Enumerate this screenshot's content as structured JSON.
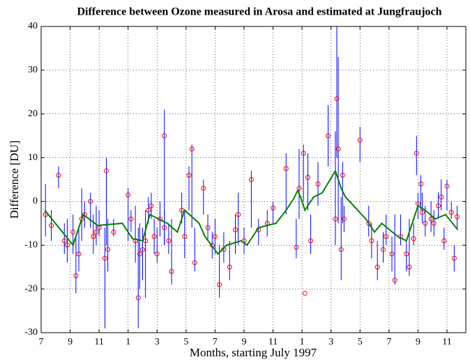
{
  "chart_data": {
    "type": "line",
    "title": "Difference between Ozone measured in Arosa and estimated at Jungfraujoch",
    "xlabel": "Months, starting July 1997",
    "ylabel": "Difference [DU]",
    "xlim": [
      0,
      29.3
    ],
    "ylim": [
      -30,
      40
    ],
    "xticks": [
      {
        "value": 0,
        "label": "7"
      },
      {
        "value": 2,
        "label": "9"
      },
      {
        "value": 4,
        "label": "11"
      },
      {
        "value": 6,
        "label": "1"
      },
      {
        "value": 8,
        "label": "3"
      },
      {
        "value": 10,
        "label": "5"
      },
      {
        "value": 12,
        "label": "7"
      },
      {
        "value": 14,
        "label": "9"
      },
      {
        "value": 16,
        "label": "11"
      },
      {
        "value": 18,
        "label": "1"
      },
      {
        "value": 20,
        "label": "3"
      },
      {
        "value": 22,
        "label": "5"
      },
      {
        "value": 24,
        "label": "7"
      },
      {
        "value": 26,
        "label": "9"
      },
      {
        "value": 28,
        "label": "11"
      }
    ],
    "yticks": [
      -30,
      -20,
      -10,
      0,
      10,
      20,
      30,
      40
    ],
    "grid": true,
    "series": [
      {
        "type": "errorbar",
        "color": "#0000ff",
        "x": [
          0.3,
          0.7,
          1.2,
          1.6,
          1.8,
          2.2,
          2.4,
          2.6,
          2.8,
          3.0,
          3.4,
          3.6,
          3.8,
          4.0,
          4.4,
          4.5,
          4.6,
          5.0,
          6.0,
          6.2,
          6.5,
          6.7,
          6.8,
          7.0,
          7.2,
          7.4,
          7.6,
          7.8,
          8.0,
          8.2,
          8.5,
          8.8,
          8.5,
          9.0,
          9.7,
          9.9,
          10.2,
          10.4,
          10.6,
          11.2,
          11.5,
          11.8,
          12.0,
          12.3,
          12.6,
          13.0,
          13.4,
          13.6,
          14.0,
          14.5,
          15.0,
          15.6,
          16.0,
          16.9,
          17.6,
          17.8,
          18.2,
          18.1,
          18.4,
          18.6,
          19.1,
          19.8,
          20.3,
          20.4,
          20.5,
          20.7,
          20.8,
          20.9,
          22.0,
          22.6,
          22.8,
          23.2,
          23.6,
          23.8,
          24.2,
          24.4,
          24.8,
          25.2,
          25.4,
          25.7,
          25.9,
          26.0,
          26.2,
          26.3,
          26.5,
          26.9,
          27.1,
          27.4,
          27.6,
          27.8,
          28.0,
          28.3,
          28.5,
          28.7
        ],
        "low": [
          -8,
          -9,
          3,
          -12,
          -14,
          -12,
          -21,
          -16,
          -9,
          -6,
          -6,
          -12,
          -10,
          -8,
          -29,
          -10,
          -16,
          -8,
          -9,
          -7,
          -14,
          -29,
          -20,
          -18,
          -22,
          -5,
          -4,
          -12,
          -14,
          -8,
          -10,
          -12,
          -10,
          -19,
          -5,
          -13,
          -2,
          -6,
          -16,
          -3,
          -9,
          -13,
          -12,
          -22,
          -14,
          -18,
          -12,
          -10,
          -12,
          -6,
          -10,
          -8,
          -5,
          -3,
          -13,
          -4,
          null,
          0,
          -2,
          -12,
          -1,
          8,
          -10,
          10,
          -5,
          -18,
          -5,
          -7,
          9,
          -8,
          -13,
          -18,
          -14,
          -10,
          -16,
          -19,
          -10,
          -16,
          -17,
          -10,
          6,
          -4,
          -2,
          -5,
          -8,
          -7,
          -8,
          -4,
          -2,
          -11,
          -2,
          -4,
          -16,
          -6
        ],
        "high": [
          4,
          -2,
          8,
          -5,
          -4,
          -3,
          -8,
          -6,
          3,
          0,
          2,
          -3,
          -1,
          -2,
          -6,
          10,
          -4,
          -4,
          3,
          -2,
          -1,
          -6,
          -5,
          -6,
          -2,
          1,
          2,
          -4,
          -6,
          0,
          -2,
          -5,
          21,
          -4,
          2,
          -2,
          8,
          13,
          -6,
          5,
          -3,
          -7,
          -4,
          -10,
          -7,
          -9,
          -3,
          2,
          -6,
          7,
          -4,
          -2,
          0,
          11,
          -4,
          12,
          null,
          13,
          11,
          -3,
          9,
          22,
          16,
          40,
          33,
          1,
          9,
          -1,
          17,
          -1,
          -5,
          -9,
          -7,
          -3,
          -8,
          -3,
          -3,
          -9,
          -4,
          -5,
          15,
          2,
          6,
          2,
          -1,
          0,
          -2,
          2,
          5,
          -6,
          5,
          0,
          -10,
          -1
        ]
      },
      {
        "type": "scatter",
        "color": "#ff0000",
        "x": [
          0.3,
          0.7,
          1.2,
          1.6,
          1.8,
          2.2,
          2.4,
          2.6,
          2.8,
          3.0,
          3.4,
          3.6,
          3.8,
          4.0,
          4.4,
          4.5,
          4.6,
          5.0,
          6.0,
          6.2,
          6.5,
          6.7,
          6.8,
          7.0,
          7.2,
          7.4,
          7.6,
          7.8,
          8.0,
          8.2,
          8.5,
          8.8,
          8.5,
          9.0,
          9.7,
          9.9,
          10.2,
          10.4,
          10.6,
          11.2,
          11.5,
          11.8,
          12.0,
          12.3,
          12.6,
          13.0,
          13.4,
          13.6,
          14.0,
          14.5,
          15.0,
          15.6,
          16.0,
          16.9,
          17.6,
          17.8,
          18.2,
          18.1,
          18.4,
          18.6,
          19.1,
          19.8,
          20.3,
          20.4,
          20.5,
          20.7,
          20.8,
          20.9,
          22.0,
          22.6,
          22.8,
          23.2,
          23.6,
          23.8,
          24.2,
          24.4,
          24.8,
          25.2,
          25.4,
          25.7,
          25.9,
          26.0,
          26.2,
          26.3,
          26.5,
          26.9,
          27.1,
          27.4,
          27.6,
          27.8,
          28.0,
          28.3,
          28.5,
          28.7
        ],
        "values": [
          -3,
          -5.5,
          6,
          -9,
          -10,
          -7,
          -17,
          -12,
          -4,
          -3,
          0,
          -8,
          -7,
          -6,
          -13,
          7,
          -11,
          -7,
          1.5,
          -4,
          -9,
          -22,
          -12,
          -11,
          -9,
          -2,
          -1,
          -8,
          -12,
          -4,
          -6,
          -9,
          15,
          -16,
          -2,
          -8,
          6,
          12,
          -14,
          3,
          -6,
          -10,
          -8,
          -19,
          -11,
          -15,
          -6.5,
          -3,
          -9,
          5,
          -6.5,
          -5,
          -1.5,
          7.5,
          -10.5,
          3,
          -21,
          11,
          5.5,
          -9,
          4,
          15,
          -4,
          23.5,
          12,
          -11,
          6,
          -4,
          14,
          -5,
          -9,
          -15,
          -11,
          -8,
          -12,
          -18,
          -8,
          -12,
          -15,
          -8.5,
          11,
          -0.5,
          4,
          -2.5,
          -5,
          -4,
          -5,
          -1,
          1,
          -9,
          3.5,
          -2.5,
          -13,
          -3.5
        ]
      },
      {
        "type": "line",
        "color": "#008000",
        "x": [
          0.25,
          2.2,
          2.9,
          3.9,
          5.6,
          6.3,
          7.0,
          7.5,
          8.7,
          9.4,
          9.9,
          10.9,
          11.3,
          12.2,
          12.8,
          13.8,
          14.2,
          15.0,
          16.2,
          16.9,
          17.4,
          17.7,
          17.9,
          18.2,
          18.8,
          19.4,
          20.3,
          20.7,
          21.0,
          22.4,
          23.0,
          23.5,
          24.6,
          25.2,
          26.0,
          26.5,
          27.2,
          27.9,
          28.75
        ],
        "values": [
          -2,
          -10,
          -3,
          -5.5,
          -5,
          -8.5,
          -9,
          -3,
          -5,
          -7,
          -2,
          -5,
          -8,
          -12,
          -10,
          -9,
          -10,
          -6,
          -5,
          -2,
          0.5,
          2.5,
          1,
          -2,
          1,
          2,
          7,
          3,
          1,
          -4,
          -7,
          -5,
          -8,
          -9,
          -1,
          -2,
          -4,
          -3,
          -6.5
        ]
      }
    ]
  }
}
